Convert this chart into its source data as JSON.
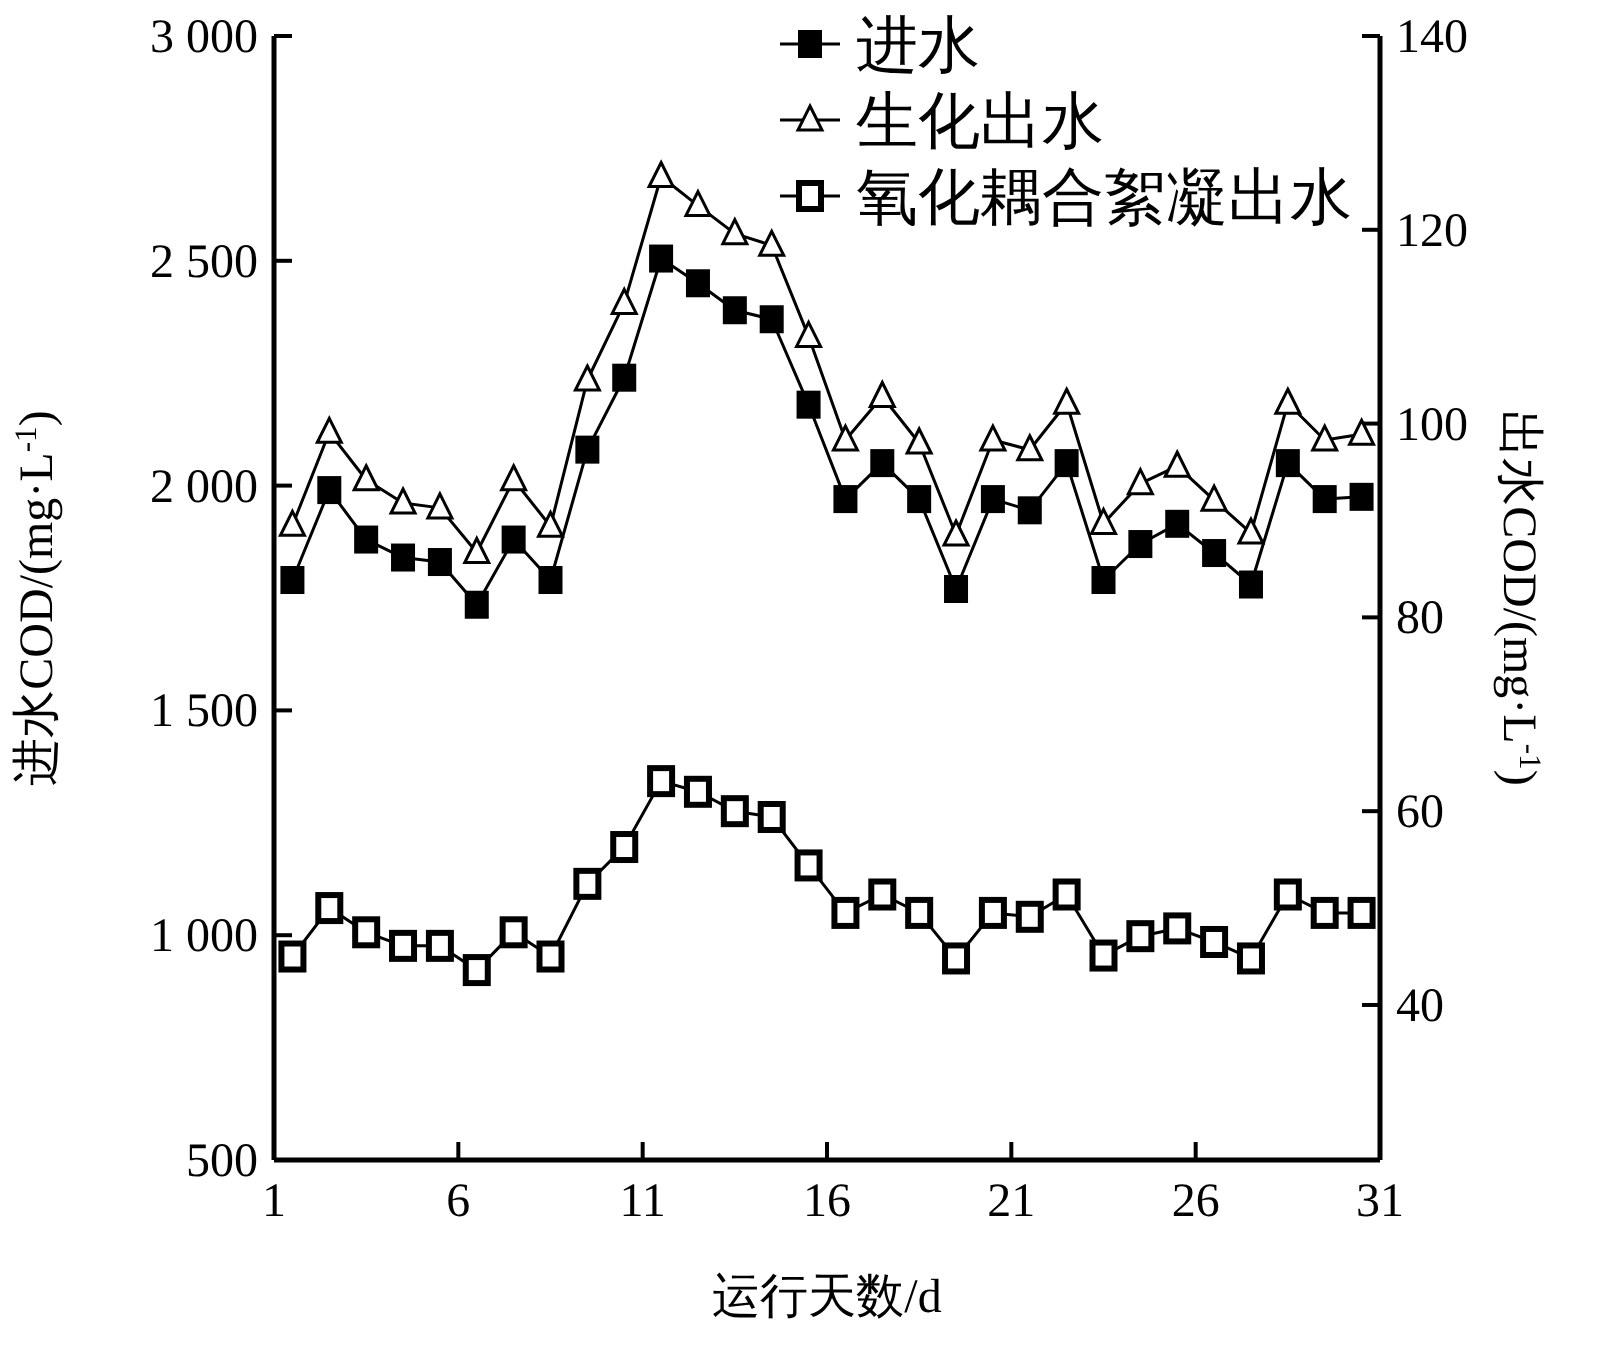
{
  "chart_data": {
    "type": "line",
    "xlabel": "运行天数/d",
    "ylabel": "进水COD/(mg·L$^{-1}$)",
    "y2label": "出水COD/(mg·L$^{-1}$)",
    "x": [
      1.5,
      2.5,
      3.5,
      4.5,
      5.5,
      6.5,
      7.5,
      8.5,
      9.5,
      10.5,
      11.5,
      12.5,
      13.5,
      14.5,
      15.5,
      16.5,
      17.5,
      18.5,
      19.5,
      20.5,
      21.5,
      22.5,
      23.5,
      24.5,
      25.5,
      26.5,
      27.5,
      28.5,
      29.5,
      30.5
    ],
    "series": [
      {
        "name": "进水",
        "color": "#000000",
        "marker": "square",
        "values": [
          1790,
          1990,
          1880,
          1840,
          1830,
          1735,
          1880,
          1790,
          2080,
          2240,
          2505,
          2450,
          2390,
          2370,
          2180,
          1970,
          2050,
          1970,
          1770,
          1970,
          1945,
          2050,
          1790,
          1870,
          1915,
          1850,
          1780,
          2050,
          1970,
          1975
        ]
      },
      {
        "name": "生化出水",
        "color": "#000000",
        "marker": "triangle",
        "axis": "y2",
        "values": [
          89.5,
          99.1,
          94.2,
          91.8,
          91.3,
          86.7,
          94.2,
          89.4,
          104.5,
          112.4,
          125.5,
          122.5,
          119.6,
          118.4,
          109.0,
          98.3,
          102.8,
          98.0,
          88.5,
          98.3,
          97.3,
          102.1,
          89.7,
          93.8,
          95.6,
          92.1,
          88.7,
          102.1,
          98.3,
          98.9
        ]
      },
      {
        "name": "氧化耦合絮凝出水",
        "color": "#000000",
        "marker": "square",
        "axis": "y2",
        "values": [
          45.0,
          50.0,
          47.5,
          46.1,
          46.1,
          43.6,
          47.5,
          45.0,
          52.5,
          56.3,
          63.1,
          62.0,
          60.0,
          59.4,
          54.4,
          49.5,
          51.4,
          49.5,
          44.8,
          49.5,
          49.1,
          51.4,
          45.1,
          47.1,
          47.9,
          46.5,
          44.8,
          51.4,
          49.5,
          49.5
        ]
      }
    ],
    "xlim": [
      1,
      31
    ],
    "xticks": [
      1,
      6,
      11,
      16,
      21,
      26,
      31
    ],
    "ylim": [
      500,
      3000
    ],
    "yticks": [
      500,
      {
        "value": 1000,
        "label": "1 000"
      },
      {
        "value": 1500,
        "label": "1 500"
      },
      {
        "value": 2000,
        "label": "2 000"
      },
      {
        "value": 2500,
        "label": "2 500"
      },
      {
        "value": 3000,
        "label": "3 000"
      }
    ],
    "y2lim": [
      24,
      140
    ],
    "y2ticks": [
      40,
      60,
      80,
      100,
      120,
      140
    ],
    "grid": false,
    "legend": "top right",
    "line_style": "solid"
  }
}
